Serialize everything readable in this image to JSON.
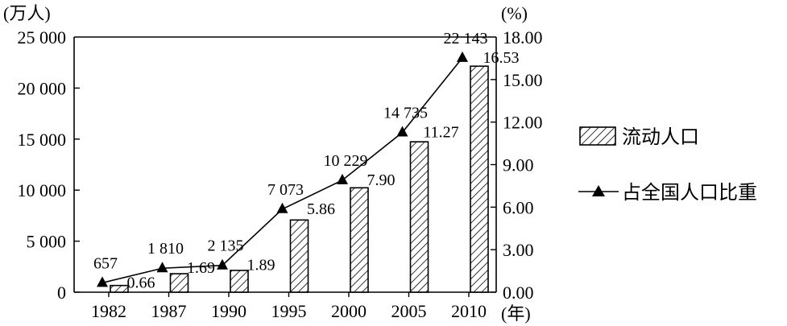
{
  "chart_data": {
    "type": "bar",
    "categories": [
      "1982",
      "1987",
      "1990",
      "1995",
      "2000",
      "2005",
      "2010"
    ],
    "series": [
      {
        "name": "流动人口",
        "type": "bar",
        "axis": "left",
        "values": [
          657,
          1810,
          2135,
          7073,
          10229,
          14735,
          22143
        ],
        "labels": [
          "657",
          "1 810",
          "2 135",
          "7 073",
          "10 229",
          "14 735",
          "22 143"
        ]
      },
      {
        "name": "占全国人口比重",
        "type": "line",
        "axis": "right",
        "values": [
          0.66,
          1.69,
          1.89,
          5.86,
          7.9,
          11.27,
          16.53
        ],
        "labels": [
          "0.66",
          "1.69",
          "1.89",
          "5.86",
          "7.90",
          "11.27",
          "16.53"
        ]
      }
    ],
    "left_axis": {
      "unit": "(万人)",
      "ylim": [
        0,
        25000
      ],
      "ticks": [
        0,
        5000,
        10000,
        15000,
        20000,
        25000
      ],
      "tick_labels": [
        "0",
        "5 000",
        "10 000",
        "15 000",
        "20 000",
        "25 000"
      ]
    },
    "right_axis": {
      "unit": "(%)",
      "ylim": [
        0,
        18
      ],
      "ticks": [
        0,
        3,
        6,
        9,
        12,
        15,
        18
      ],
      "tick_labels": [
        "0.00",
        "3.00",
        "6.00",
        "9.00",
        "12.00",
        "15.00",
        "18.00"
      ]
    },
    "x_unit": "(年)",
    "legend_position": "right",
    "bar_pattern": "diagonal-hatch",
    "colors": {
      "ink": "#000000",
      "background": "#ffffff"
    }
  }
}
